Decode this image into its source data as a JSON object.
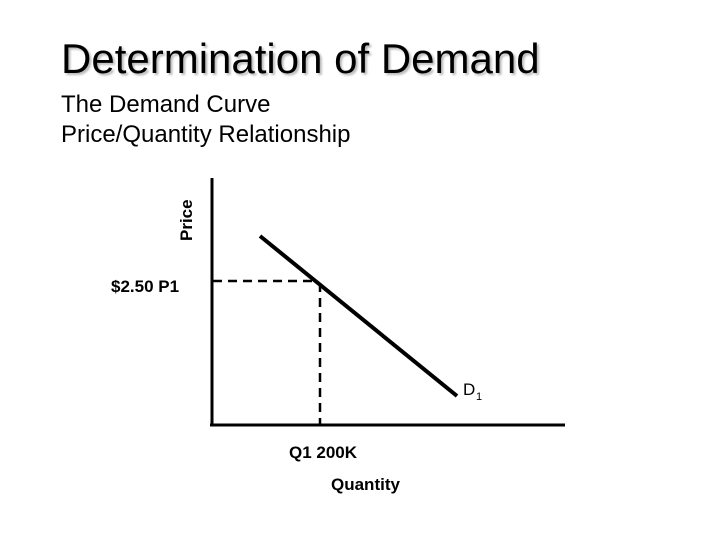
{
  "title": "Determination of Demand",
  "subtitle": {
    "line1": "The Demand Curve",
    "line2": "Price/Quantity Relationship"
  },
  "diagram": {
    "y_axis_label": "Price",
    "x_axis_label": "Quantity",
    "price_point_label": "$2.50 P1",
    "quantity_point_label": "Q1 200K",
    "curve_label": "D",
    "curve_label_subscript": "1"
  }
}
